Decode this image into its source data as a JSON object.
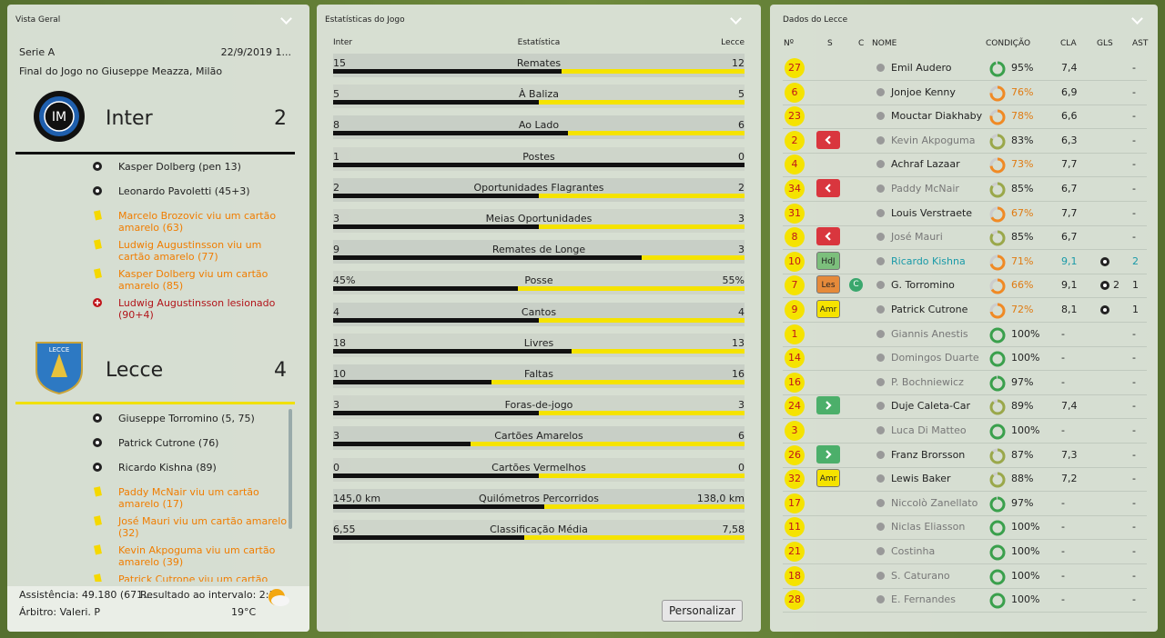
{
  "overview": {
    "title": "Vista Geral",
    "competition": "Serie A",
    "date": "22/9/2019 1...",
    "venue": "Final do Jogo no Giuseppe Meazza, Milão",
    "home": {
      "name": "Inter",
      "score": "2",
      "events": [
        {
          "type": "goal",
          "text": "Kasper Dolberg (pen 13)"
        },
        {
          "type": "goal",
          "text": "Leonardo Pavoletti (45+3)"
        },
        {
          "type": "yellow",
          "text": "Marcelo Brozovic viu um cartão amarelo (63)"
        },
        {
          "type": "yellow",
          "text": "Ludwig Augustinsson viu um cartão amarelo (77)"
        },
        {
          "type": "yellow",
          "text": "Kasper Dolberg viu um cartão amarelo (85)"
        },
        {
          "type": "injury",
          "text": "Ludwig Augustinsson lesionado (90+4)"
        }
      ]
    },
    "away": {
      "name": "Lecce",
      "score": "4",
      "events": [
        {
          "type": "goal",
          "text": "Giuseppe Torromino (5, 75)"
        },
        {
          "type": "goal",
          "text": "Patrick Cutrone (76)"
        },
        {
          "type": "goal",
          "text": "Ricardo Kishna (89)"
        },
        {
          "type": "yellow",
          "text": "Paddy McNair viu um cartão amarelo (17)"
        },
        {
          "type": "yellow",
          "text": "José Mauri viu um cartão amarelo (32)"
        },
        {
          "type": "yellow",
          "text": "Kevin Akpoguma viu um cartão amarelo (39)"
        },
        {
          "type": "yellow",
          "text": "Patrick Cutrone viu um cartão amarelo"
        }
      ]
    },
    "attendance": "Assistência: 49.180 (671...",
    "halftime": "Resultado ao intervalo: 2:1",
    "referee": "Árbitro: Valeri. P",
    "temperature": "19°C"
  },
  "stats": {
    "title": "Estatísticas do Jogo",
    "headers": [
      "Inter",
      "Estatística",
      "Lecce"
    ],
    "rows": [
      {
        "home": "15",
        "label": "Remates",
        "away": "12"
      },
      {
        "home": "5",
        "label": "À Baliza",
        "away": "5"
      },
      {
        "home": "8",
        "label": "Ao Lado",
        "away": "6"
      },
      {
        "home": "1",
        "label": "Postes",
        "away": "0"
      },
      {
        "home": "2",
        "label": "Oportunidades Flagrantes",
        "away": "2"
      },
      {
        "home": "3",
        "label": "Meias Oportunidades",
        "away": "3"
      },
      {
        "home": "9",
        "label": "Remates de Longe",
        "away": "3"
      },
      {
        "home": "45%",
        "label": "Posse",
        "away": "55%"
      },
      {
        "home": "4",
        "label": "Cantos",
        "away": "4"
      },
      {
        "home": "18",
        "label": "Livres",
        "away": "13"
      },
      {
        "home": "10",
        "label": "Faltas",
        "away": "16"
      },
      {
        "home": "3",
        "label": "Foras-de-jogo",
        "away": "3"
      },
      {
        "home": "3",
        "label": "Cartões Amarelos",
        "away": "6"
      },
      {
        "home": "0",
        "label": "Cartões Vermelhos",
        "away": "0"
      },
      {
        "home": "145,0 km",
        "label": "Quilómetros Percorridos",
        "away": "138,0 km"
      },
      {
        "home": "6,55",
        "label": "Classificação Média",
        "away": "7,58"
      }
    ],
    "button": "Personalizar"
  },
  "squad": {
    "title": "Dados do Lecce",
    "headers": [
      "Nº",
      "S",
      "C",
      "NOME",
      "CONDIÇÃO",
      "CLA",
      "GLS",
      "AST"
    ],
    "players": [
      {
        "number": "27",
        "name": "Emil Audero",
        "condition": "95%",
        "rating": "7,4",
        "assists": "-"
      },
      {
        "number": "6",
        "name": "Jonjoe Kenny",
        "condition": "76%",
        "rating": "6,9",
        "assists": "-"
      },
      {
        "number": "23",
        "name": "Mouctar Diakhaby",
        "condition": "78%",
        "rating": "6,6",
        "assists": "-"
      },
      {
        "number": "2",
        "sub": "off",
        "muted": true,
        "name": "Kevin Akpoguma",
        "condition": "83%",
        "rating": "6,3",
        "assists": "-"
      },
      {
        "number": "4",
        "name": "Achraf Lazaar",
        "condition": "73%",
        "rating": "7,7",
        "assists": "-"
      },
      {
        "number": "34",
        "sub": "off",
        "muted": true,
        "name": "Paddy McNair",
        "condition": "85%",
        "rating": "6,7",
        "assists": "-"
      },
      {
        "number": "31",
        "name": "Louis Verstraete",
        "condition": "67%",
        "rating": "7,7",
        "assists": "-"
      },
      {
        "number": "8",
        "sub": "off",
        "muted": true,
        "name": "José Mauri",
        "condition": "85%",
        "rating": "6,7",
        "assists": "-"
      },
      {
        "number": "10",
        "badge": "HdJ",
        "star": true,
        "name": "Ricardo Kishna",
        "condition": "71%",
        "rating": "9,1",
        "goal_icon": true,
        "assists": "2"
      },
      {
        "number": "7",
        "badge": "Les",
        "captain": "C",
        "name": "G. Torromino",
        "condition": "66%",
        "rating": "9,1",
        "goal_icon": true,
        "goals": "2",
        "assists": "1"
      },
      {
        "number": "9",
        "badge": "Amr",
        "name": "Patrick Cutrone",
        "condition": "72%",
        "rating": "8,1",
        "goal_icon": true,
        "assists": "1"
      },
      {
        "number": "1",
        "muted": true,
        "name": "Giannis Anestis",
        "condition": "100%",
        "rating": "-",
        "assists": "-"
      },
      {
        "number": "14",
        "muted": true,
        "name": "Domingos Duarte",
        "condition": "100%",
        "rating": "-",
        "assists": "-"
      },
      {
        "number": "16",
        "muted": true,
        "name": "P. Bochniewicz",
        "condition": "97%",
        "rating": "-",
        "assists": "-"
      },
      {
        "number": "24",
        "sub": "on",
        "name": "Duje Caleta-Car",
        "condition": "89%",
        "rating": "7,4",
        "assists": "-"
      },
      {
        "number": "3",
        "muted": true,
        "name": "Luca Di Matteo",
        "condition": "100%",
        "rating": "-",
        "assists": "-"
      },
      {
        "number": "26",
        "sub": "on",
        "name": "Franz Brorsson",
        "condition": "87%",
        "rating": "7,3",
        "assists": "-"
      },
      {
        "number": "32",
        "badge": "Amr",
        "name": "Lewis Baker",
        "condition": "88%",
        "rating": "7,2",
        "assists": "-"
      },
      {
        "number": "17",
        "muted": true,
        "name": "Niccolò Zanellato",
        "condition": "97%",
        "rating": "-",
        "assists": "-"
      },
      {
        "number": "11",
        "muted": true,
        "name": "Niclas Eliasson",
        "condition": "100%",
        "rating": "-",
        "assists": "-"
      },
      {
        "number": "21",
        "muted": true,
        "name": "Costinha",
        "condition": "100%",
        "rating": "-",
        "assists": "-"
      },
      {
        "number": "18",
        "muted": true,
        "name": "S. Caturano",
        "condition": "100%",
        "rating": "-",
        "assists": "-"
      },
      {
        "number": "28",
        "muted": true,
        "name": "E. Fernandes",
        "condition": "100%",
        "rating": "-",
        "assists": "-"
      }
    ]
  }
}
